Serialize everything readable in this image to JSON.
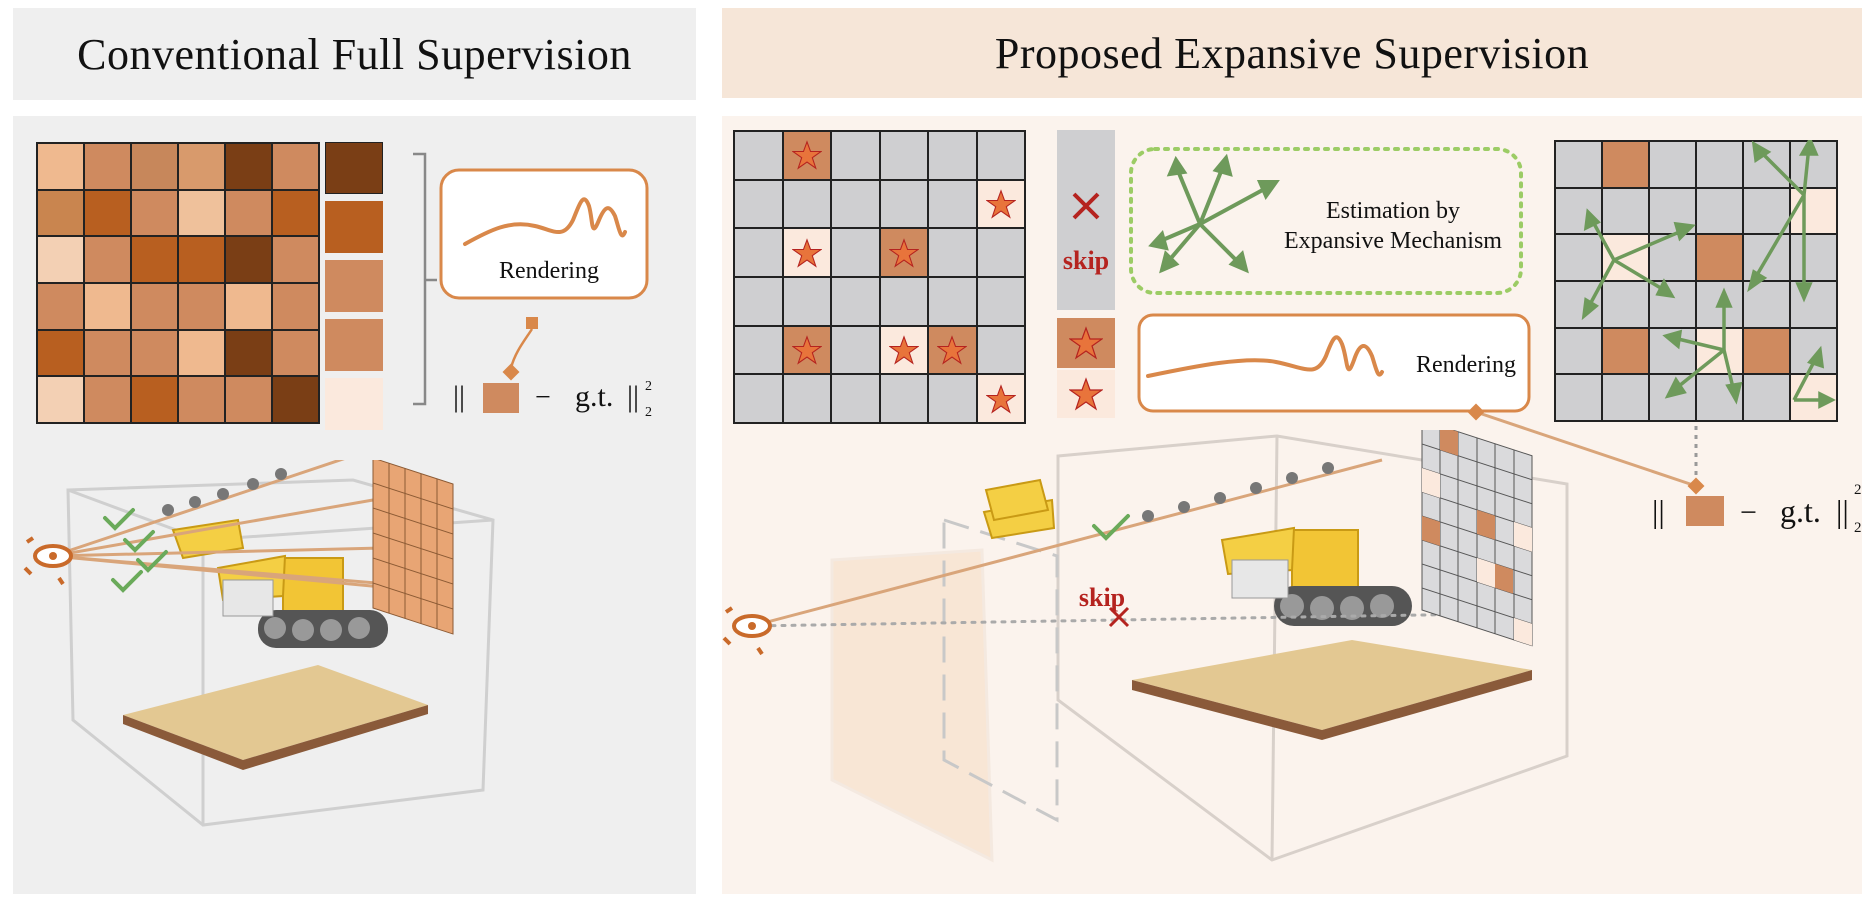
{
  "left": {
    "title": "Conventional Full Supervision",
    "rendering_label": "Rendering",
    "loss": {
      "open": "||",
      "minus": "−",
      "gt": "g.t.",
      "close": "||",
      "sub": "2",
      "sup": "2"
    },
    "grid_colors": [
      [
        "#efb98f",
        "#cf8a5f",
        "#c7875b",
        "#d89a6c",
        "#7a3e15",
        "#cf8a5f"
      ],
      [
        "#c9854f",
        "#b85f20",
        "#cf8a5f",
        "#efc19b",
        "#cf8a5f",
        "#b85f20"
      ],
      [
        "#f3d0b4",
        "#cf8a5f",
        "#b85f20",
        "#b85f20",
        "#7a3e15",
        "#cf8a5f"
      ],
      [
        "#cf8a5f",
        "#efb98f",
        "#cf8a5f",
        "#cf8a5f",
        "#efb98f",
        "#cf8a5f"
      ],
      [
        "#b85f20",
        "#cf8a5f",
        "#cf8a5f",
        "#efb98f",
        "#7a3e15",
        "#cf8a5f"
      ],
      [
        "#f3d0b4",
        "#cf8a5f",
        "#b85f20",
        "#cf8a5f",
        "#cf8a5f",
        "#7a3e15"
      ]
    ],
    "column_colors": [
      "#7a3e15",
      "#b85f20",
      "#cf8a5f",
      "#cf8a5f",
      "#fbe9dd"
    ]
  },
  "right": {
    "title": "Proposed Expansive Supervision",
    "skip_label": "skip",
    "estimation_line1": "Estimation by",
    "estimation_line2": "Expansive Mechanism",
    "rendering_label": "Rendering",
    "loss": {
      "open": "||",
      "minus": "−",
      "gt": "g.t.",
      "close": "||",
      "sub": "2",
      "sup": "2"
    },
    "scene_skip_label": "skip",
    "star_grid": [
      [
        "g",
        "d*",
        "g",
        "g",
        "g",
        "g"
      ],
      [
        "g",
        "g",
        "g",
        "g",
        "g",
        "l*"
      ],
      [
        "g",
        "l*",
        "g",
        "d*",
        "g",
        "g"
      ],
      [
        "g",
        "g",
        "g",
        "g",
        "g",
        "g"
      ],
      [
        "g",
        "d*",
        "g",
        "l*",
        "d*",
        "g"
      ],
      [
        "g",
        "g",
        "g",
        "g",
        "g",
        "l*"
      ]
    ],
    "est_grid": [
      [
        "g",
        "d",
        "g",
        "g",
        "g",
        "g"
      ],
      [
        "g",
        "g",
        "g",
        "g",
        "g",
        "l"
      ],
      [
        "g",
        "l",
        "g",
        "d",
        "g",
        "g"
      ],
      [
        "g",
        "g",
        "g",
        "g",
        "g",
        "g"
      ],
      [
        "g",
        "d",
        "g",
        "l",
        "d",
        "g"
      ],
      [
        "g",
        "g",
        "g",
        "g",
        "g",
        "l"
      ]
    ]
  },
  "colors": {
    "accent": "#d9884a",
    "dark_brown": "#7a3e15",
    "cell_gray": "#cfcfd1",
    "light_cell": "#fbe9dd",
    "green": "#6e9a5b",
    "dotted_green": "#9ccc65",
    "red": "#b5231f",
    "left_bg": "#efefef",
    "right_bg": "#fbf3ed",
    "right_header_bg": "#f6e6d8"
  }
}
